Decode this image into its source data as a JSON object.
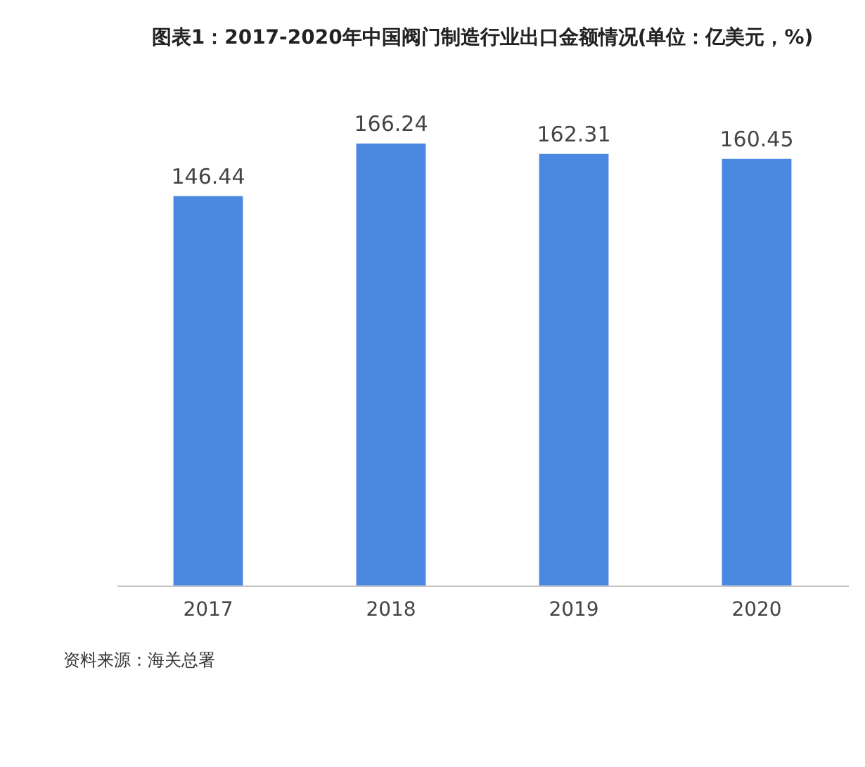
{
  "chart_data": {
    "type": "bar",
    "title": "图表1：2017-2020年中国阀门制造行业出口金额情况(单位：亿美元，%)",
    "categories": [
      "2017",
      "2018",
      "2019",
      "2020"
    ],
    "values": [
      146.44,
      166.24,
      162.31,
      160.45
    ],
    "color": "#4a88e2",
    "data_labels": true,
    "grid": false,
    "annotations": [
      "资料来源：海关总署"
    ]
  }
}
